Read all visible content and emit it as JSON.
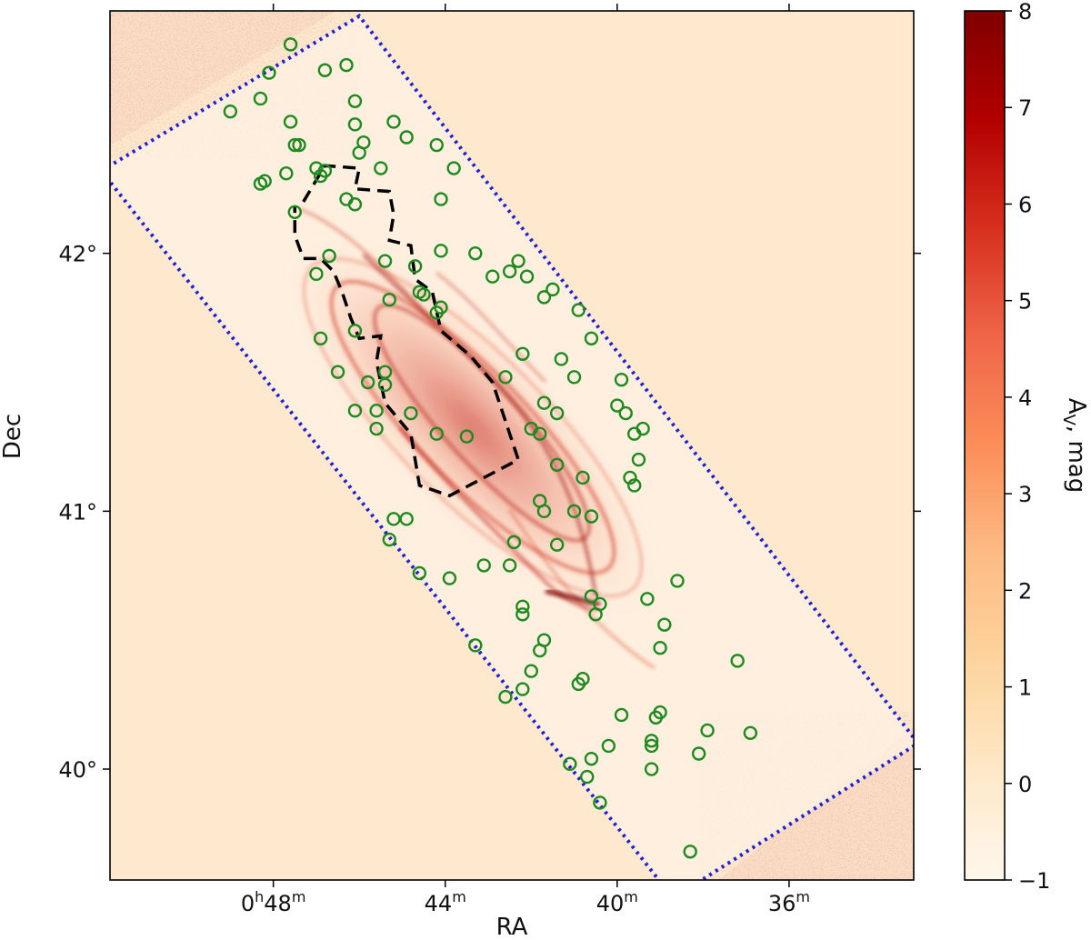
{
  "chart_data": {
    "type": "heatmap",
    "title": "",
    "xlabel": "RA",
    "ylabel": "Dec",
    "x_axis": {
      "ticks": [
        {
          "ra_min": 48,
          "label_main": "0",
          "sup_h": "h",
          "label_mid": "48",
          "sup_m": "m"
        },
        {
          "ra_min": 44,
          "label_main": "",
          "sup_h": "",
          "label_mid": "44",
          "sup_m": "m"
        },
        {
          "ra_min": 40,
          "label_main": "",
          "sup_h": "",
          "label_mid": "40",
          "sup_m": "m"
        },
        {
          "ra_min": 36,
          "label_main": "",
          "sup_h": "",
          "label_mid": "36",
          "sup_m": "m"
        }
      ],
      "range_min": [
        51.8,
        33.1
      ]
    },
    "y_axis": {
      "ticks": [
        {
          "dec": 42,
          "label": "42°"
        },
        {
          "dec": 41,
          "label": "41°"
        },
        {
          "dec": 40,
          "label": "40°"
        }
      ],
      "range_deg": [
        39.57,
        42.94
      ]
    },
    "colorbar": {
      "label": "A_V, mag",
      "label_main": "A",
      "label_sub": "V",
      "label_rest": ", mag",
      "range": [
        -1,
        8
      ],
      "ticks": [
        {
          "value": 8,
          "label": "8"
        },
        {
          "value": 7,
          "label": "7"
        },
        {
          "value": 6,
          "label": "6"
        },
        {
          "value": 5,
          "label": "5"
        },
        {
          "value": 4,
          "label": "4"
        },
        {
          "value": 3,
          "label": "3"
        },
        {
          "value": 2,
          "label": "2"
        },
        {
          "value": 1,
          "label": "1"
        },
        {
          "value": 0,
          "label": "0"
        },
        {
          "value": -1,
          "label": "−1"
        }
      ],
      "colormap": "OrRd",
      "stops": [
        "#fff7ec",
        "#fee8c8",
        "#fdd49e",
        "#fdbb84",
        "#fc8d59",
        "#ef6548",
        "#d7301f",
        "#b30000",
        "#7f0000"
      ]
    },
    "colors": {
      "background": "#fee8ce",
      "survey_boundary": "#1f1fd6",
      "field_outline": "#000000",
      "markers": "#1f8a1f",
      "dust": "#b3140f"
    },
    "survey_boundary_radec": [
      [
        52.0,
        42.32
      ],
      [
        46.0,
        42.92
      ],
      [
        33.0,
        40.1
      ],
      [
        38.7,
        39.5
      ]
    ],
    "field_outline_radec": [
      [
        47.3,
        42.2
      ],
      [
        46.8,
        42.34
      ],
      [
        46.0,
        42.33
      ],
      [
        46.1,
        42.25
      ],
      [
        45.3,
        42.24
      ],
      [
        45.2,
        42.15
      ],
      [
        45.3,
        42.05
      ],
      [
        44.8,
        42.03
      ],
      [
        44.7,
        41.9
      ],
      [
        44.3,
        41.85
      ],
      [
        44.1,
        41.7
      ],
      [
        43.4,
        41.6
      ],
      [
        42.9,
        41.5
      ],
      [
        42.3,
        41.2
      ],
      [
        43.9,
        41.06
      ],
      [
        44.6,
        41.1
      ],
      [
        44.8,
        41.3
      ],
      [
        45.4,
        41.42
      ],
      [
        45.6,
        41.58
      ],
      [
        45.5,
        41.68
      ],
      [
        46.0,
        41.67
      ],
      [
        46.2,
        41.75
      ],
      [
        46.4,
        41.85
      ],
      [
        46.6,
        41.93
      ],
      [
        46.9,
        41.98
      ],
      [
        47.3,
        41.98
      ],
      [
        47.5,
        42.07
      ],
      [
        47.5,
        42.18
      ]
    ],
    "clusters_radec": [
      [
        47.6,
        42.81
      ],
      [
        49.0,
        42.55
      ],
      [
        48.3,
        42.6
      ],
      [
        48.1,
        42.7
      ],
      [
        46.8,
        42.71
      ],
      [
        46.3,
        42.73
      ],
      [
        46.1,
        42.59
      ],
      [
        47.6,
        42.51
      ],
      [
        46.1,
        42.5
      ],
      [
        45.2,
        42.51
      ],
      [
        44.9,
        42.45
      ],
      [
        45.9,
        42.43
      ],
      [
        46.0,
        42.39
      ],
      [
        47.4,
        42.42
      ],
      [
        47.5,
        42.42
      ],
      [
        44.2,
        42.42
      ],
      [
        43.8,
        42.33
      ],
      [
        45.5,
        42.33
      ],
      [
        47.0,
        42.33
      ],
      [
        46.8,
        42.32
      ],
      [
        46.9,
        42.3
      ],
      [
        47.7,
        42.31
      ],
      [
        48.2,
        42.28
      ],
      [
        48.3,
        42.27
      ],
      [
        46.3,
        42.21
      ],
      [
        46.1,
        42.19
      ],
      [
        44.1,
        42.21
      ],
      [
        47.5,
        42.16
      ],
      [
        46.7,
        41.99
      ],
      [
        45.4,
        41.97
      ],
      [
        44.7,
        41.95
      ],
      [
        44.1,
        42.01
      ],
      [
        43.3,
        42.0
      ],
      [
        42.3,
        41.97
      ],
      [
        42.1,
        41.91
      ],
      [
        41.5,
        41.86
      ],
      [
        41.7,
        41.83
      ],
      [
        42.9,
        41.91
      ],
      [
        42.5,
        41.93
      ],
      [
        47.0,
        41.92
      ],
      [
        45.3,
        41.82
      ],
      [
        44.6,
        41.85
      ],
      [
        44.5,
        41.84
      ],
      [
        44.1,
        41.79
      ],
      [
        44.2,
        41.77
      ],
      [
        40.9,
        41.78
      ],
      [
        40.6,
        41.67
      ],
      [
        41.3,
        41.59
      ],
      [
        42.2,
        41.61
      ],
      [
        41.0,
        41.52
      ],
      [
        39.9,
        41.51
      ],
      [
        42.6,
        41.52
      ],
      [
        46.1,
        41.7
      ],
      [
        46.9,
        41.67
      ],
      [
        46.5,
        41.54
      ],
      [
        45.8,
        41.5
      ],
      [
        45.4,
        41.49
      ],
      [
        45.4,
        41.54
      ],
      [
        46.1,
        41.39
      ],
      [
        45.6,
        41.39
      ],
      [
        45.6,
        41.32
      ],
      [
        44.8,
        41.38
      ],
      [
        44.2,
        41.3
      ],
      [
        43.5,
        41.29
      ],
      [
        42.0,
        41.32
      ],
      [
        41.7,
        41.42
      ],
      [
        41.4,
        41.38
      ],
      [
        41.8,
        41.3
      ],
      [
        40.0,
        41.41
      ],
      [
        39.8,
        41.38
      ],
      [
        39.4,
        41.32
      ],
      [
        39.6,
        41.3
      ],
      [
        39.5,
        41.2
      ],
      [
        39.7,
        41.13
      ],
      [
        39.6,
        41.1
      ],
      [
        41.4,
        41.18
      ],
      [
        40.8,
        41.13
      ],
      [
        41.8,
        41.04
      ],
      [
        41.7,
        41.0
      ],
      [
        41.0,
        41.0
      ],
      [
        40.6,
        40.98
      ],
      [
        45.2,
        40.97
      ],
      [
        44.9,
        40.97
      ],
      [
        45.3,
        40.89
      ],
      [
        42.4,
        40.88
      ],
      [
        41.4,
        40.87
      ],
      [
        44.6,
        40.76
      ],
      [
        43.9,
        40.74
      ],
      [
        43.1,
        40.79
      ],
      [
        42.5,
        40.79
      ],
      [
        38.6,
        40.73
      ],
      [
        39.3,
        40.66
      ],
      [
        40.6,
        40.67
      ],
      [
        40.4,
        40.64
      ],
      [
        40.5,
        40.6
      ],
      [
        42.2,
        40.63
      ],
      [
        42.2,
        40.6
      ],
      [
        38.9,
        40.56
      ],
      [
        41.7,
        40.5
      ],
      [
        41.8,
        40.46
      ],
      [
        39.0,
        40.47
      ],
      [
        43.3,
        40.48
      ],
      [
        37.2,
        40.42
      ],
      [
        42.0,
        40.38
      ],
      [
        40.8,
        40.35
      ],
      [
        40.9,
        40.33
      ],
      [
        42.2,
        40.31
      ],
      [
        42.6,
        40.28
      ],
      [
        39.9,
        40.21
      ],
      [
        39.0,
        40.22
      ],
      [
        39.1,
        40.2
      ],
      [
        39.2,
        40.11
      ],
      [
        39.2,
        40.09
      ],
      [
        37.9,
        40.15
      ],
      [
        36.9,
        40.14
      ],
      [
        40.2,
        40.09
      ],
      [
        38.1,
        40.06
      ],
      [
        39.2,
        40.0
      ],
      [
        40.6,
        40.04
      ],
      [
        41.1,
        40.02
      ],
      [
        40.7,
        39.97
      ],
      [
        40.4,
        39.87
      ],
      [
        38.3,
        39.68
      ]
    ]
  }
}
